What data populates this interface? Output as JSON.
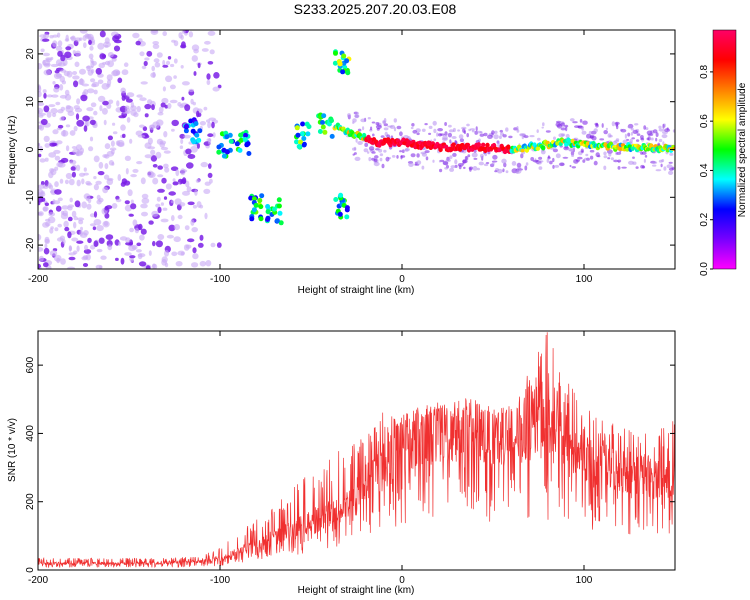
{
  "title": "S233.2025.207.20.03.E08",
  "colors": {
    "spectrum_points": "#7a1fe6",
    "snr_line": "#f03030",
    "frame": "#000000"
  },
  "chart_data": [
    {
      "type": "heatmap",
      "title": "S233.2025.207.20.03.E08",
      "xlabel": "Height of straight line (km)",
      "ylabel": "Frequency (Hz)",
      "xlim": [
        -200,
        150
      ],
      "ylim": [
        -25,
        25
      ],
      "xticks": [
        -200,
        -100,
        0,
        100
      ],
      "yticks": [
        -20,
        -10,
        0,
        10,
        20
      ],
      "grid": false,
      "colorbar": {
        "label": "Normalized spectral amplitude",
        "range": [
          0,
          0.97
        ],
        "ticks": [
          "0.0",
          "0.2",
          "0.4",
          "0.6",
          "0.8"
        ],
        "colormap": [
          "#ff00ff",
          "#7700ff",
          "#0000ff",
          "#00ffff",
          "#00ff00",
          "#ffff00",
          "#ff7f00",
          "#ff0000",
          "#ff0066"
        ]
      },
      "ridge": {
        "x": [
          -37,
          -33,
          -25,
          -15,
          -5,
          0,
          10,
          20,
          30,
          40,
          50,
          60,
          70,
          80,
          90,
          100,
          110,
          120,
          130,
          140,
          150
        ],
        "y": [
          5,
          4,
          3,
          1.5,
          1.5,
          1.5,
          1,
          0.5,
          0.5,
          0.5,
          0.3,
          0,
          0.5,
          1,
          1.5,
          1,
          0.8,
          0.5,
          0.5,
          0.3,
          0
        ]
      },
      "features": [
        {
          "x": -115,
          "y": 4,
          "level": 0.3
        },
        {
          "x": -97,
          "y": 1,
          "level": 0.4
        },
        {
          "x": -87,
          "y": 1.5,
          "level": 0.4
        },
        {
          "x": -80,
          "y": -12,
          "level": 0.45
        },
        {
          "x": -70,
          "y": -13,
          "level": 0.4
        },
        {
          "x": -55,
          "y": 3,
          "level": 0.45
        },
        {
          "x": -42,
          "y": 5,
          "level": 0.45
        },
        {
          "x": -33,
          "y": 18,
          "level": 0.5
        },
        {
          "x": -33,
          "y": -12,
          "level": 0.4
        }
      ]
    },
    {
      "type": "line",
      "xlabel": "Height of straight line (km)",
      "ylabel": "SNR (10 * v/v)",
      "xlim": [
        -200,
        150
      ],
      "ylim": [
        0,
        700
      ],
      "xticks": [
        -200,
        -100,
        0,
        100
      ],
      "yticks": [
        0,
        200,
        400,
        600
      ],
      "grid": false,
      "series": [
        {
          "envelope_x": [
            -200,
            -150,
            -110,
            -100,
            -90,
            -80,
            -70,
            -60,
            -50,
            -40,
            -30,
            -20,
            -10,
            0,
            10,
            20,
            30,
            40,
            50,
            60,
            70,
            75,
            80,
            90,
            100,
            110,
            120,
            130,
            140,
            150
          ],
          "envelope_y": [
            20,
            20,
            25,
            35,
            55,
            80,
            100,
            120,
            150,
            170,
            200,
            260,
            320,
            380,
            400,
            410,
            420,
            420,
            400,
            400,
            420,
            440,
            420,
            380,
            340,
            310,
            300,
            290,
            280,
            270
          ],
          "peak_y": [
            35,
            35,
            40,
            70,
            110,
            150,
            190,
            240,
            290,
            330,
            380,
            400,
            470,
            460,
            480,
            490,
            470,
            460,
            470,
            490,
            580,
            650,
            700,
            560,
            480,
            440,
            430,
            400,
            420,
            440
          ]
        }
      ]
    }
  ]
}
